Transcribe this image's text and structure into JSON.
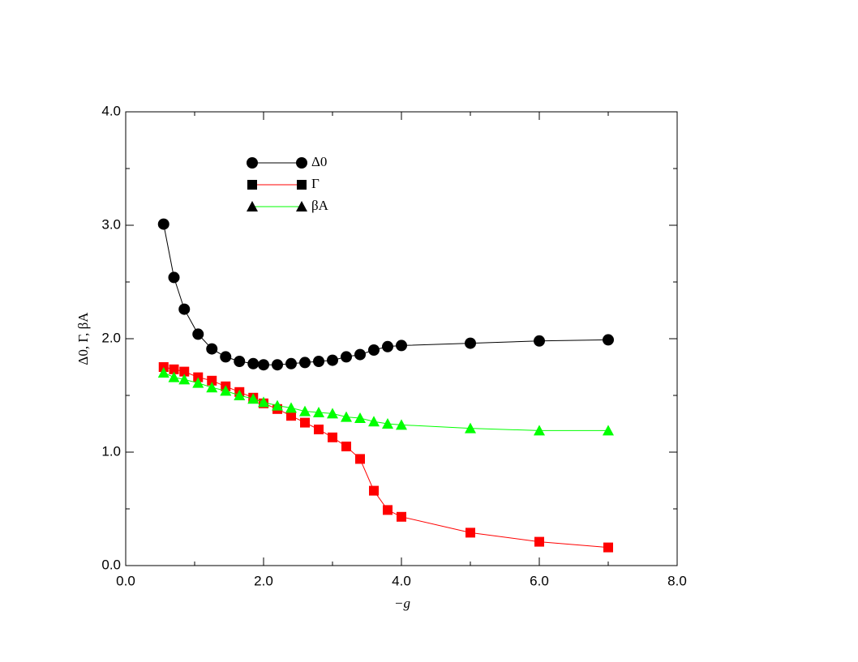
{
  "chart_data": {
    "type": "line",
    "xlabel": "−g",
    "ylabel": "Δ0,  Γ,  βA",
    "x": [
      0.55,
      0.7,
      0.85,
      1.05,
      1.25,
      1.45,
      1.65,
      1.85,
      2.0,
      2.2,
      2.4,
      2.6,
      2.8,
      3.0,
      3.2,
      3.4,
      3.6,
      3.8,
      4.0,
      5.0,
      6.0,
      7.0
    ],
    "series": [
      {
        "name": "Δ0",
        "color": "#000000",
        "marker": "circle",
        "values": [
          3.01,
          2.54,
          2.26,
          2.04,
          1.91,
          1.84,
          1.8,
          1.78,
          1.77,
          1.77,
          1.78,
          1.79,
          1.8,
          1.81,
          1.84,
          1.86,
          1.9,
          1.93,
          1.94,
          1.96,
          1.98,
          1.99
        ]
      },
      {
        "name": "Γ",
        "color": "#ff0000",
        "marker": "square",
        "values": [
          1.75,
          1.73,
          1.71,
          1.66,
          1.63,
          1.58,
          1.53,
          1.48,
          1.43,
          1.38,
          1.32,
          1.26,
          1.2,
          1.13,
          1.05,
          0.94,
          0.66,
          0.49,
          0.43,
          0.29,
          0.21,
          0.16
        ]
      },
      {
        "name": "βA",
        "color": "#00ff00",
        "marker": "triangle",
        "values": [
          1.7,
          1.66,
          1.64,
          1.61,
          1.57,
          1.54,
          1.5,
          1.47,
          1.44,
          1.41,
          1.39,
          1.36,
          1.35,
          1.34,
          1.31,
          1.3,
          1.27,
          1.25,
          1.24,
          1.21,
          1.19,
          1.19
        ]
      }
    ],
    "xlim": [
      0,
      8
    ],
    "ylim": [
      0,
      4
    ],
    "xticks": [
      {
        "value": 0,
        "label": "0.0"
      },
      {
        "value": 2,
        "label": "2.0"
      },
      {
        "value": 4,
        "label": "4.0"
      },
      {
        "value": 6,
        "label": "6.0"
      },
      {
        "value": 8,
        "label": "8.0"
      }
    ],
    "yticks": [
      {
        "value": 0,
        "label": "0.0"
      },
      {
        "value": 1,
        "label": "1.0"
      },
      {
        "value": 2,
        "label": "2.0"
      },
      {
        "value": 3,
        "label": "3.0"
      },
      {
        "value": 4,
        "label": "4.0"
      }
    ],
    "grid": false,
    "legend": "upper-left"
  }
}
